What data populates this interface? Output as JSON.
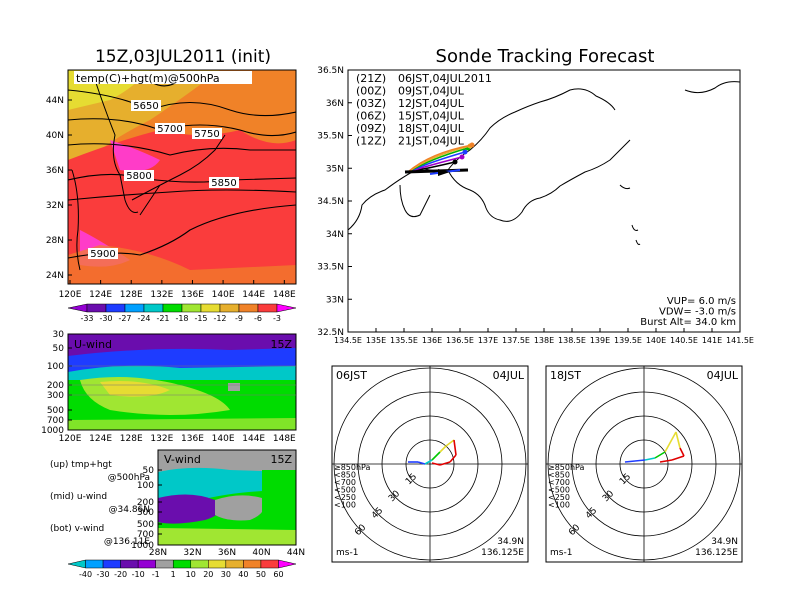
{
  "left_title": "15Z,03JUL2011 (init)",
  "main_title": "Sonde Tracking Forecast",
  "panel_500": {
    "label": "temp(C)+hgt(m)@500hPa",
    "lat_ticks": [
      "44N",
      "40N",
      "36N",
      "32N",
      "28N",
      "24N"
    ],
    "lon_ticks": [
      "120E",
      "124E",
      "128E",
      "132E",
      "136E",
      "140E",
      "144E",
      "148E"
    ],
    "contours": [
      "5650",
      "5700",
      "5750",
      "5800",
      "5850",
      "5900"
    ]
  },
  "temp_colorbar": {
    "labels": [
      "-33",
      "-30",
      "-27",
      "-24",
      "-21",
      "-18",
      "-15",
      "-12",
      "-9",
      "-6",
      "-3"
    ],
    "colors": [
      "#9400d3",
      "#6a0dad",
      "#1e3cff",
      "#00a0ff",
      "#00c8c8",
      "#00dc00",
      "#a0e632",
      "#e6dc32",
      "#e6af2d",
      "#f08228",
      "#fa3c3c",
      "#f0f"
    ]
  },
  "panel_u": {
    "label": "U-wind",
    "time": "15Z",
    "p_ticks": [
      "30",
      "50",
      "100",
      "200",
      "300",
      "500",
      "700",
      "1000"
    ],
    "lon_ticks": [
      "120E",
      "124E",
      "128E",
      "132E",
      "136E",
      "140E",
      "144E",
      "148E"
    ]
  },
  "panel_v": {
    "label": "V-wind",
    "time": "15Z",
    "p_ticks": [
      "50",
      "100",
      "200",
      "300",
      "500",
      "700",
      "1000"
    ],
    "lat_ticks": [
      "28N",
      "32N",
      "36N",
      "40N",
      "44N"
    ]
  },
  "wind_colorbar": {
    "labels": [
      "-40",
      "-30",
      "-20",
      "-10",
      "-1",
      "1",
      "10",
      "20",
      "30",
      "40",
      "50",
      "60"
    ],
    "colors": [
      "#00c8c8",
      "#00a0ff",
      "#1e3cff",
      "#6a0dad",
      "#9400d3",
      "#a0a0a0",
      "#00dc00",
      "#a0e632",
      "#e6dc32",
      "#e6af2d",
      "#f08228",
      "#fa3c3c",
      "#f0f"
    ]
  },
  "legend_notes": [
    {
      "a": "(up) tmp+hgt",
      "b": "@500hPa"
    },
    {
      "a": "(mid) u-wind",
      "b": "@34.86N"
    },
    {
      "a": "(bot) v-wind",
      "b": "@136.11E"
    }
  ],
  "track_map": {
    "lat_ticks": [
      "36.5N",
      "36N",
      "35.5N",
      "35N",
      "34.5N",
      "34N",
      "33.5N",
      "33N",
      "32.5N"
    ],
    "lon_ticks": [
      "134.5E",
      "135E",
      "135.5E",
      "136E",
      "136.5E",
      "137E",
      "137.5E",
      "138E",
      "138.5E",
      "139E",
      "139.5E",
      "140E",
      "140.5E",
      "141E",
      "141.5E"
    ],
    "legend": [
      {
        "utc": "(21Z)",
        "jst": "06JST,04JUL2011",
        "color": "#000000"
      },
      {
        "utc": "(00Z)",
        "jst": "09JST,04JUL",
        "color": "#a000c8"
      },
      {
        "utc": "(03Z)",
        "jst": "12JST,04JUL",
        "color": "#1e3cff"
      },
      {
        "utc": "(06Z)",
        "jst": "15JST,04JUL",
        "color": "#00b400"
      },
      {
        "utc": "(09Z)",
        "jst": "18JST,04JUL",
        "color": "#e6af2d"
      },
      {
        "utc": "(12Z)",
        "jst": "21JST,04JUL",
        "color": "#f08228"
      }
    ],
    "params": [
      "VUP= 6.0 m/s",
      "VDW= -3.0 m/s",
      "Burst Alt= 34.0 km"
    ]
  },
  "hodographs": [
    {
      "time": "06JST",
      "date": "04JUL",
      "lat": "34.9N",
      "lon": "136.125E",
      "unit": "ms-1"
    },
    {
      "time": "18JST",
      "date": "04JUL",
      "lat": "34.9N",
      "lon": "136.125E",
      "unit": "ms-1"
    }
  ],
  "hodo_rings": [
    "15",
    "30",
    "45",
    "60"
  ],
  "hodo_levels": [
    {
      "label": "≥850hPa",
      "color": "#e00000"
    },
    {
      "label": "<850",
      "color": "#f08228"
    },
    {
      "label": "<700",
      "color": "#e6dc32"
    },
    {
      "label": "<500",
      "color": "#00c800"
    },
    {
      "label": "<250",
      "color": "#00c8c8"
    },
    {
      "label": "<100",
      "color": "#1e3cff"
    }
  ]
}
